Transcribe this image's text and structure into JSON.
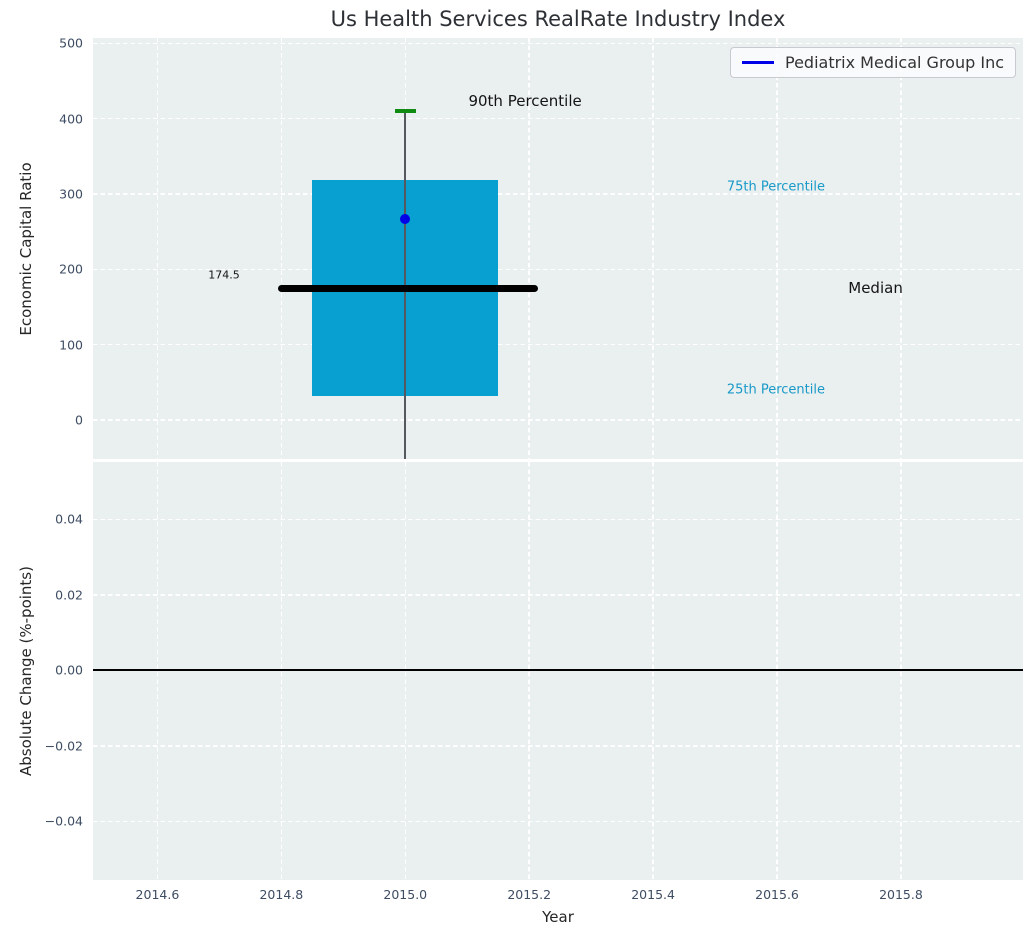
{
  "chart_data": {
    "type": "box",
    "title": "Us Health Services RealRate Industry Index",
    "xlabel": "Year",
    "xlim": [
      2014.496,
      2015.997
    ],
    "xticks": [
      {
        "v": 2014.6,
        "label": "2014.6"
      },
      {
        "v": 2014.8,
        "label": "2014.8"
      },
      {
        "v": 2015.0,
        "label": "2015.0"
      },
      {
        "v": 2015.2,
        "label": "2015.2"
      },
      {
        "v": 2015.4,
        "label": "2015.4"
      },
      {
        "v": 2015.6,
        "label": "2015.6"
      },
      {
        "v": 2015.8,
        "label": "2015.8"
      }
    ],
    "panels": [
      {
        "name": "economic-capital-ratio",
        "ylabel": "Economic Capital Ratio",
        "ylim": [
          -52,
          507
        ],
        "yticks": [
          {
            "v": 0,
            "label": "0"
          },
          {
            "v": 100,
            "label": "100"
          },
          {
            "v": 200,
            "label": "200"
          },
          {
            "v": 300,
            "label": "300"
          },
          {
            "v": 400,
            "label": "400"
          },
          {
            "v": 500,
            "label": "500"
          }
        ],
        "grid": true,
        "legend": {
          "label": "Pediatrix Medical Group Inc",
          "line_color": "#0000e8",
          "position": "upper right"
        },
        "boxplot": {
          "x_center": 2015.0,
          "box_x_left": 2014.85,
          "box_x_right": 2015.15,
          "q1": 31,
          "median": 174.5,
          "q3": 318,
          "p90": 410,
          "whisker_low": "clipped below axis bottom",
          "median_line_x_left": 2014.795,
          "median_line_x_right": 2015.215,
          "box_color": "#089fd1",
          "cap_color": "#0e8b10",
          "median_color": "#000000",
          "whisker_color": "#55595e"
        },
        "company_point": {
          "x": 2015.0,
          "y": 267,
          "color": "#0000e8",
          "label": "Pediatrix Medical Group Inc"
        },
        "annotations": [
          {
            "text": "90th Percentile",
            "x": 2015.102,
            "y": 424,
            "color": "#141414",
            "size": 15
          },
          {
            "text": "75th Percentile",
            "x": 2015.519,
            "y": 309,
            "color": "#189ac8",
            "size": 13
          },
          {
            "text": "Median",
            "x": 2015.715,
            "y": 175,
            "color": "#141414",
            "size": 15
          },
          {
            "text": "25th Percentile",
            "x": 2015.519,
            "y": 40,
            "color": "#189ac8",
            "size": 13
          },
          {
            "text": "174.5",
            "x": 2014.682,
            "y": 192,
            "color": "#141414",
            "size": 11
          }
        ]
      },
      {
        "name": "absolute-change",
        "ylabel": "Absolute Change (%-points)",
        "ylim": [
          -0.0555,
          0.0552
        ],
        "yticks": [
          {
            "v": -0.04,
            "label": "−0.04"
          },
          {
            "v": -0.02,
            "label": "−0.02"
          },
          {
            "v": 0,
            "label": "0.00"
          },
          {
            "v": 0.02,
            "label": "0.02"
          },
          {
            "v": 0.04,
            "label": "0.04"
          }
        ],
        "grid": true,
        "zero_line": {
          "y": 0,
          "color": "#000000"
        }
      }
    ],
    "colors": {
      "figure_background": "#ffffff",
      "axes_background": "#eaeff0",
      "gridline": "#ffffff",
      "tick_label": "#3e4d63",
      "box_fill": "#089fd1",
      "cap_green": "#0e8b10",
      "accent_blue": "#0000e8"
    }
  }
}
